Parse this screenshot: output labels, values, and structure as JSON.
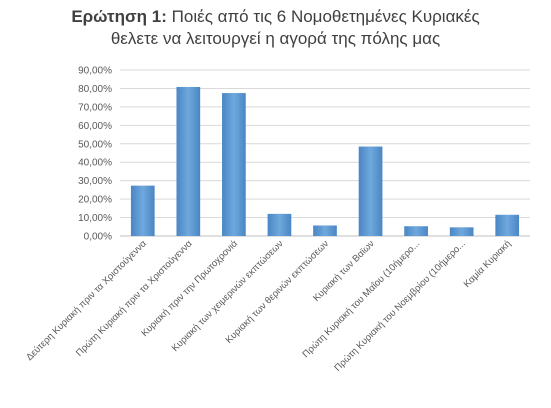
{
  "chart_data": {
    "type": "bar",
    "title_prefix": "Ερώτηση 1:",
    "title_line1": "Ποιές από τις 6 Νομοθετημένες Κυριακές",
    "title_line2": "θελετε να λειτουργεί η αγορά της πόλης μας",
    "categories": [
      "Δεύτερη Κυριακή πριν τα Χριστούγεννα",
      "Πρώτη Κυριακή πριν τα Χριστούγεννα",
      "Κυριακή πριν την Πρωτοχρονιά",
      "Κυριακή των χειμερινών εκπτώσεων",
      "Κυριακή των θερινών εκπτώσεων",
      "Κυριακή των Βαϊων",
      "Πρώτη Κυριακή του Μαΐου (10ήμερο...",
      "Πρώτη Κυριακή του Νοεμβρίου (10ήμερο...",
      "Καμία Κυριακή"
    ],
    "values": [
      27.3,
      80.8,
      77.5,
      12.0,
      5.7,
      48.5,
      5.3,
      4.7,
      11.5
    ],
    "ylim": [
      0,
      90
    ],
    "yticks": [
      "0,00%",
      "10,00%",
      "20,00%",
      "30,00%",
      "40,00%",
      "50,00%",
      "60,00%",
      "70,00%",
      "80,00%",
      "90,00%"
    ],
    "grid": true,
    "bar_color": "#5B9BD5"
  }
}
